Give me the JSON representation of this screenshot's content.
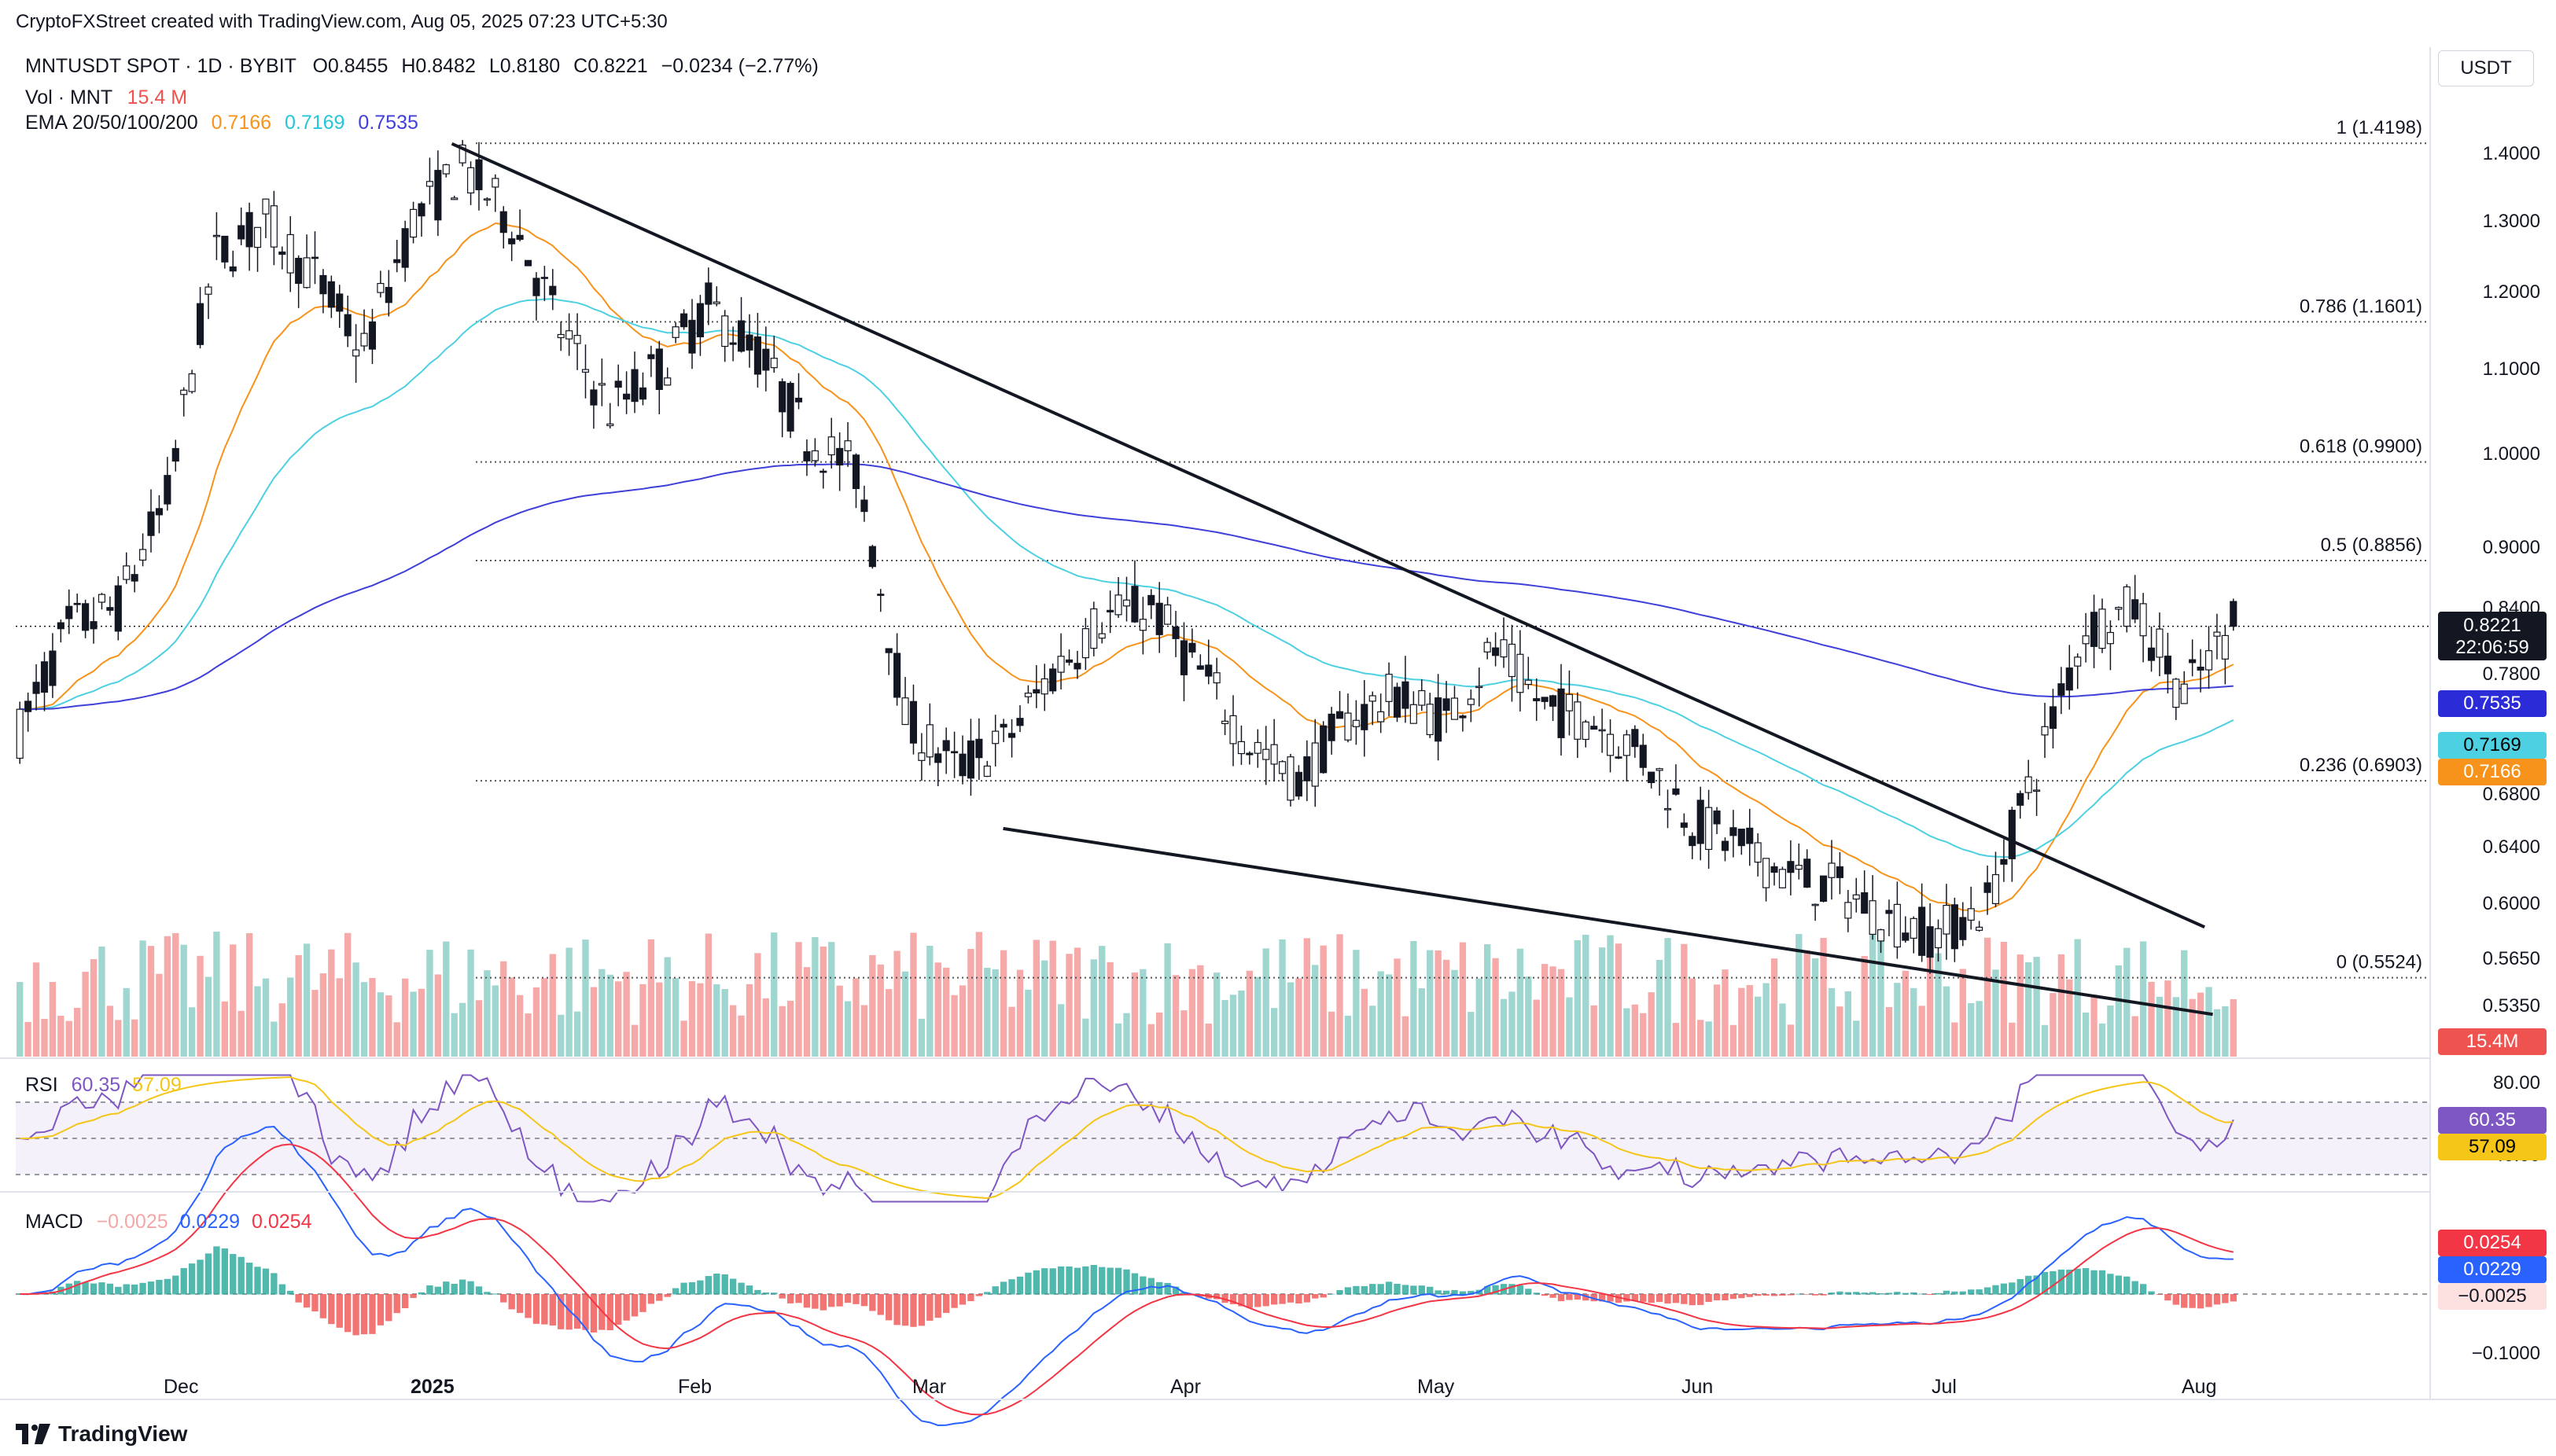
{
  "header": {
    "attribution": "CryptoFXStreet created with TradingView.com, Aug 05, 2025 07:23 UTC+5:30",
    "symbol_line": "MNTUSDT SPOT · 1D · BYBIT",
    "open": "O0.8455",
    "high": "H0.8482",
    "low": "L0.8180",
    "close": "C0.8221",
    "change": "−0.0234 (−2.77%)",
    "vol_label": "Vol · MNT",
    "vol_value": "15.4 M",
    "ema_label": "EMA 20/50/100/200",
    "ema20": "0.7166",
    "ema50": "0.7169",
    "ema100": "0.7535"
  },
  "currency": "USDT",
  "price_axis": [
    "1.4000",
    "1.3000",
    "1.2000",
    "1.1000",
    "1.0000",
    "0.9000",
    "0.8400",
    "0.7800",
    "0.6800",
    "0.6400",
    "0.6000",
    "0.5650",
    "0.5350"
  ],
  "tags": {
    "last_price": "0.8221",
    "countdown": "22:06:59",
    "ema200": "0.7535",
    "ema50": "0.7169",
    "ema20": "0.7166",
    "volume": "15.4M",
    "rsi": "60.35",
    "rsi_ma": "57.09",
    "macd_signal": "0.0254",
    "macd": "0.0229",
    "macd_hist": "−0.0025"
  },
  "fib": [
    {
      "label": "1 (1.4198)",
      "value": 1.4198
    },
    {
      "label": "0.786 (1.1601)",
      "value": 1.1601
    },
    {
      "label": "0.618 (0.9900)",
      "value": 0.99
    },
    {
      "label": "0.5 (0.8856)",
      "value": 0.8856
    },
    {
      "label": "0.236 (0.6903)",
      "value": 0.6903
    },
    {
      "label": "0 (0.5524)",
      "value": 0.5524
    }
  ],
  "rsi_panel": {
    "label": "RSI",
    "value": "60.35",
    "ma": "57.09",
    "axis": [
      "80.00",
      "40.00"
    ]
  },
  "macd_panel": {
    "label": "MACD",
    "hist": "−0.0025",
    "macd": "0.0229",
    "signal": "0.0254",
    "axis": [
      "−0.1000"
    ]
  },
  "time_axis": [
    "Dec",
    "2025",
    "Feb",
    "Mar",
    "Apr",
    "May",
    "Jun",
    "Jul",
    "Aug"
  ],
  "footer": {
    "brand": "TradingView"
  },
  "colors": {
    "up": "#26a69a",
    "down": "#ef5350",
    "ema20": "#f7931a",
    "ema50": "#4dd0e1",
    "ema200": "#3f3fd9",
    "rsi": "#7e57c2",
    "rsi_ma": "#f5c518",
    "macd": "#2962ff",
    "signal": "#f23645"
  },
  "chart_data": {
    "type": "candlestick",
    "timeframe": "1D",
    "start_date": "2024-11-08",
    "end_date": "2025-08-05",
    "price_range": [
      0.52,
      1.45
    ],
    "price_scale": "log",
    "weekly_closes": [
      0.73,
      0.82,
      0.84,
      0.95,
      1.25,
      1.3,
      1.22,
      1.12,
      1.3,
      1.38,
      1.3,
      1.15,
      1.05,
      1.1,
      1.18,
      1.12,
      1.02,
      0.98,
      0.74,
      0.7,
      0.72,
      0.78,
      0.83,
      0.84,
      0.78,
      0.72,
      0.69,
      0.74,
      0.76,
      0.74,
      0.8,
      0.75,
      0.74,
      0.71,
      0.66,
      0.64,
      0.62,
      0.61,
      0.59,
      0.58,
      0.6,
      0.7,
      0.82,
      0.84,
      0.76,
      0.8221
    ],
    "ema20_end": 0.7166,
    "ema50_end": 0.7169,
    "ema200_end": 0.7535,
    "trendline_upper": [
      [
        "2024-12-31",
        1.419
      ],
      [
        "2025-08-01",
        0.585
      ]
    ],
    "trendline_lower": [
      [
        "2025-03-08",
        0.654
      ],
      [
        "2025-08-02",
        0.53
      ]
    ],
    "rsi_last": 60.35,
    "rsi_ma_last": 57.09,
    "macd_last": 0.0229,
    "signal_last": 0.0254,
    "hist_last": -0.0025
  }
}
